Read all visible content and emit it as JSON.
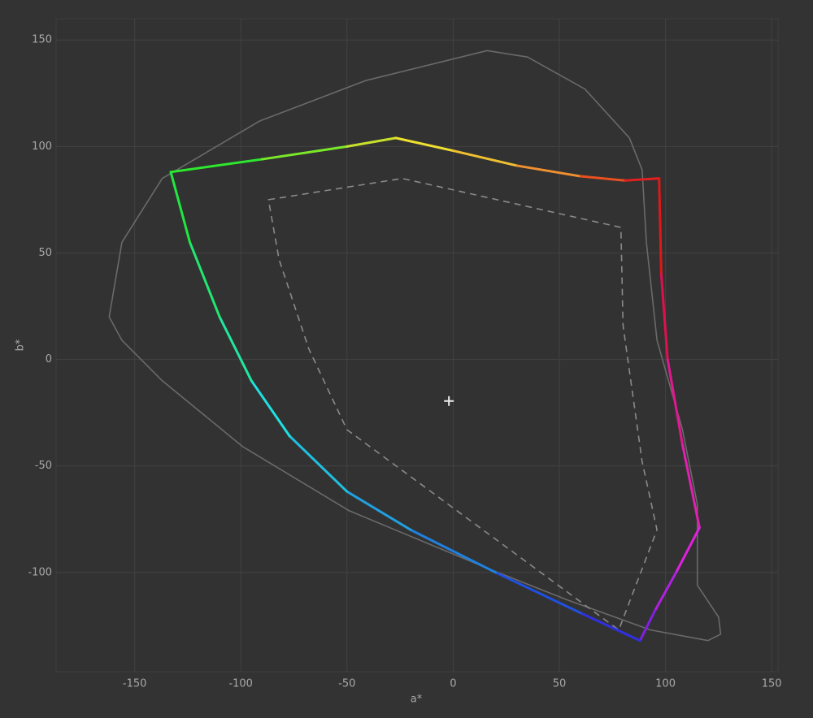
{
  "chart_data": {
    "type": "line",
    "xlabel": "a*",
    "ylabel": "b*",
    "xlim": [
      -187,
      153
    ],
    "ylim": [
      -146.6,
      160
    ],
    "xticks": [
      -150,
      -100,
      -50,
      0,
      50,
      100,
      150
    ],
    "yticks": [
      -100,
      -50,
      0,
      50,
      100,
      150
    ],
    "grid": true,
    "series": [
      {
        "color": "#6a6a6a",
        "style": "solid",
        "closed": true,
        "x": [
          -162,
          -156,
          -137,
          -91,
          -41,
          16,
          35,
          62,
          83,
          89,
          91,
          96,
          108,
          115,
          115,
          125,
          126,
          120,
          93,
          54,
          16,
          -49,
          -99,
          -137,
          -156
        ],
        "y": [
          20,
          55,
          85,
          112,
          131,
          145,
          142,
          127,
          104,
          89,
          55,
          9,
          -33,
          -68,
          -106,
          -121,
          -129,
          -132,
          -127,
          -113,
          -98,
          -71,
          -41,
          -10,
          9
        ]
      },
      {
        "color": "#8a8a8a",
        "style": "dashed",
        "closed": true,
        "x": [
          -87,
          -24,
          79,
          80,
          89,
          96,
          78,
          -50,
          -68,
          -82
        ],
        "y": [
          75,
          85,
          62,
          16,
          -48,
          -80,
          -127,
          -33,
          5,
          47
        ]
      },
      {
        "style": "gradient",
        "closed": true,
        "x": [
          -133,
          -90,
          -50,
          -27,
          0,
          30,
          60,
          81,
          97,
          98,
          101,
          108,
          116,
          105,
          95,
          88,
          60,
          20,
          -20,
          -50,
          -77,
          -95,
          -110,
          -124
        ],
        "y": [
          88,
          94,
          100,
          104,
          98,
          91,
          86,
          84,
          85,
          40,
          0,
          -40,
          -79,
          -100,
          -118,
          -132,
          -119,
          -100,
          -80,
          -62,
          -36,
          -10,
          20,
          55
        ],
        "colors": [
          "#2ee82e",
          "#7be82a",
          "#c8e02c",
          "#f0e030",
          "#f0c030",
          "#f09030",
          "#e85020",
          "#e02020",
          "#e01818",
          "#e01050",
          "#e01890",
          "#e020b0",
          "#e020e0",
          "#b020e0",
          "#8020e0",
          "#3030e0",
          "#2050e0",
          "#2080e0",
          "#20a0e0",
          "#20c0e0",
          "#20e0e0",
          "#20e8a0",
          "#20e870",
          "#20e840"
        ]
      },
      {
        "style": "marker",
        "color": "#eeeeee",
        "x": [
          -2
        ],
        "y": [
          -19.5
        ]
      }
    ]
  }
}
